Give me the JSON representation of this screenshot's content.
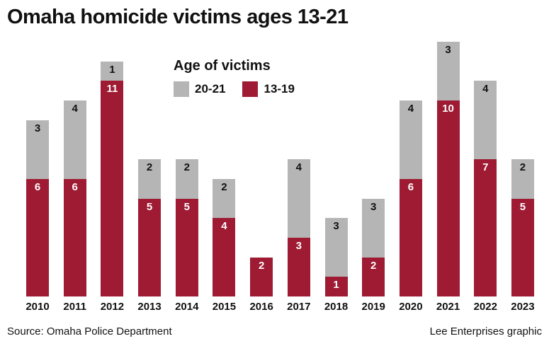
{
  "title": "Omaha homicide victims ages 13-21",
  "legend": {
    "title": "Age of victims",
    "items": [
      {
        "label": "20-21",
        "color": "#b5b5b5"
      },
      {
        "label": "13-19",
        "color": "#9e1b33"
      }
    ]
  },
  "footer": {
    "source": "Source: Omaha Police Department",
    "credit": "Lee Enterprises graphic"
  },
  "chart_data": {
    "type": "bar",
    "stacked": true,
    "title": "Omaha homicide victims ages 13-21",
    "xlabel": "",
    "ylabel": "",
    "ylim": [
      0,
      13
    ],
    "grid": false,
    "legend_position": "top-left-overlay",
    "value_labels": true,
    "categories": [
      "2010",
      "2011",
      "2012",
      "2013",
      "2014",
      "2015",
      "2016",
      "2017",
      "2018",
      "2019",
      "2020",
      "2021",
      "2022",
      "2023"
    ],
    "series": [
      {
        "name": "13-19",
        "color": "#9e1b33",
        "label_color": "#ffffff",
        "values": [
          6,
          6,
          11,
          5,
          5,
          4,
          2,
          3,
          1,
          2,
          6,
          10,
          7,
          5
        ]
      },
      {
        "name": "20-21",
        "color": "#b5b5b5",
        "label_color": "#111111",
        "values": [
          3,
          4,
          1,
          2,
          2,
          2,
          0,
          4,
          3,
          3,
          4,
          3,
          4,
          2
        ]
      }
    ],
    "totals": [
      9,
      10,
      12,
      7,
      7,
      6,
      2,
      7,
      4,
      5,
      10,
      13,
      11,
      7
    ]
  }
}
